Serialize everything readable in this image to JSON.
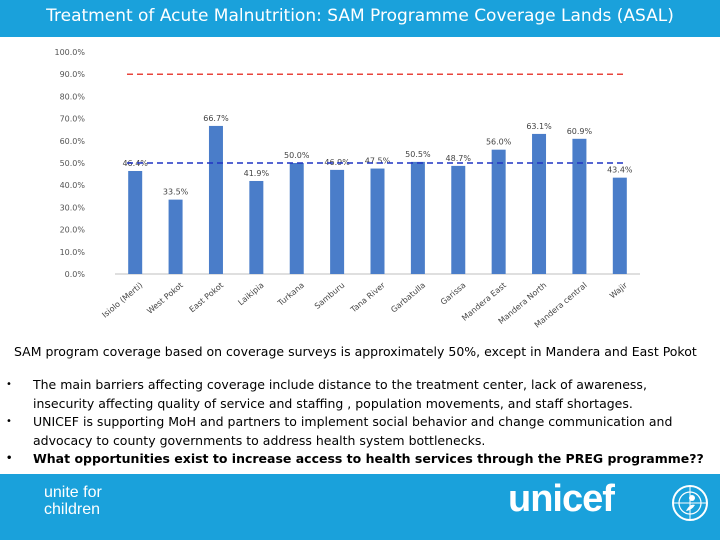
{
  "header": {
    "title": "Treatment of Acute Malnutrition: SAM Programme Coverage Lands (ASAL)"
  },
  "chart_data": {
    "type": "bar",
    "categories": [
      "Isiolo (Merti)",
      "West Pokot",
      "East Pokot",
      "Laikipia",
      "Turkana",
      "Samburu",
      "Tana River",
      "Garbatulla",
      "Garissa",
      "Mandera East",
      "Mandera North",
      "Mandera central",
      "Wajir"
    ],
    "values": [
      46.4,
      33.5,
      66.7,
      41.9,
      50.0,
      46.9,
      47.5,
      50.5,
      48.7,
      56.0,
      63.1,
      60.9,
      43.4
    ],
    "data_labels": [
      "46.4%",
      "33.5%",
      "66.7%",
      "41.9%",
      "50.0%",
      "46.9%",
      "47.5%",
      "50.5%",
      "48.7%",
      "56.0%",
      "63.1%",
      "60.9%",
      "43.4%"
    ],
    "ylim": [
      0,
      100
    ],
    "yticks": [
      "0.0%",
      "10.0%",
      "20.0%",
      "30.0%",
      "40.0%",
      "50.0%",
      "60.0%",
      "70.0%",
      "80.0%",
      "90.0%",
      "100.0%"
    ],
    "reference_lines": [
      {
        "value": 90,
        "color": "#e8453c",
        "style": "dashed"
      },
      {
        "value": 50,
        "color": "#1f33c4",
        "style": "dashed"
      }
    ],
    "bar_color": "#4a7dc9",
    "grid": false,
    "xlabel": "",
    "ylabel": ""
  },
  "body": {
    "intro": "SAM program coverage based on coverage surveys is approximately 50%, except in Mandera and East Pokot",
    "bullets": [
      "The main barriers affecting coverage include distance to the treatment center, lack of awareness, insecurity affecting quality of service and staffing , population movements, and staff shortages.",
      "UNICEF is supporting MoH and partners to implement social behavior and change communication and advocacy to county governments to address health system bottlenecks.",
      "What opportunities exist to increase access to health services through the PREG programme??"
    ],
    "bullet_symbol": "•"
  },
  "footer": {
    "tagline_line1": "unite for",
    "tagline_line2": "children",
    "logo_text": "unicef",
    "emblem_icon": "unicef-emblem-icon"
  },
  "colors": {
    "brand": "#1aa1db",
    "bar": "#4a7dc9",
    "target_line": "#e8453c",
    "average_line": "#1f33c4"
  }
}
